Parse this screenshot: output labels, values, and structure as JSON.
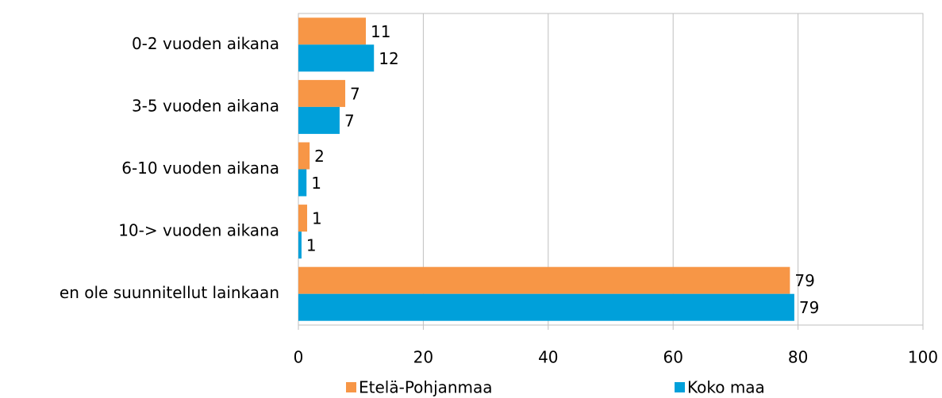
{
  "chart_data": {
    "type": "hbar",
    "categories": [
      "0-2 vuoden aikana",
      "3-5 vuoden aikana",
      "6-10 vuoden aikana",
      "10-> vuoden aikana",
      "en ole suunnitellut lainkaan"
    ],
    "series": [
      {
        "name": "Etelä-Pohjanmaa",
        "color": "#f79646",
        "values": [
          10.8,
          7.5,
          1.8,
          1.4,
          78.7
        ],
        "value_labels": [
          "11",
          "7",
          "2",
          "1",
          "79"
        ]
      },
      {
        "name": "Koko maa",
        "color": "#00a0da",
        "values": [
          12.1,
          6.6,
          1.3,
          0.5,
          79.4
        ],
        "value_labels": [
          "12",
          "7",
          "1",
          "1",
          "79"
        ]
      }
    ],
    "xlim": [
      0,
      100
    ],
    "xticks": [
      0,
      20,
      40,
      60,
      80,
      100
    ],
    "grid": true,
    "legend": "bottom"
  }
}
